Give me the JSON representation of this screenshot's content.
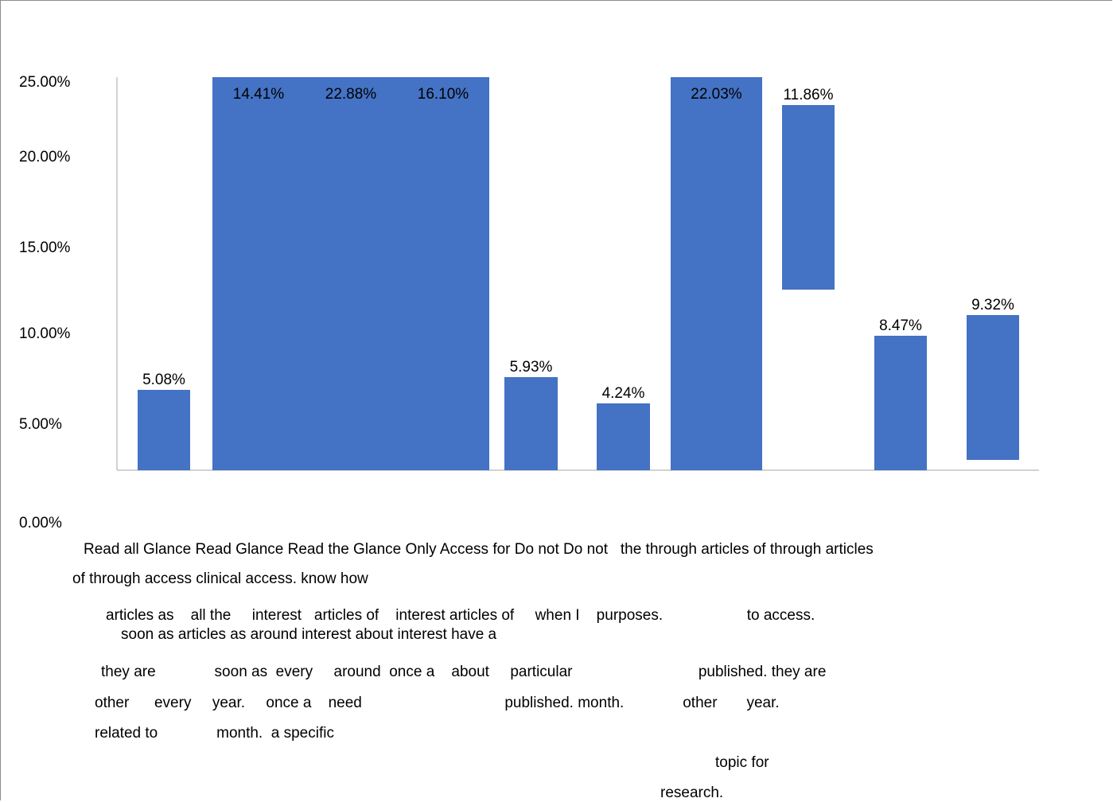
{
  "chart_data": {
    "type": "bar",
    "title": "",
    "xlabel": "",
    "ylabel": "",
    "ylim": [
      0,
      25
    ],
    "yticks": [
      "0.00%",
      "5.00%",
      "10.00%",
      "15.00%",
      "20.00%",
      "25.00%"
    ],
    "grid": false,
    "legend": "none",
    "values": [
      5.08,
      14.41,
      22.88,
      16.1,
      5.93,
      4.24,
      22.03,
      11.86,
      8.47,
      9.32
    ],
    "labels": [
      "5.08%",
      "14.41%",
      "22.88%",
      "16.10%",
      "5.93%",
      "4.24%",
      "22.03%",
      "11.86%",
      "8.47%",
      "9.32%"
    ],
    "bar_color": "#4472C4",
    "category_text_lines": [
      "Read all Glance Read Glance Read the Glance Only Access for Do not Do not   the through articles of through articles",
      "of through access clinical access. know how",
      "articles as    all the     interest   articles of    interest articles of     when I    purposes.                    to access.",
      "soon as articles as around interest about interest have a",
      "they are              soon as  every     around  once a    about     particular                              published. they are",
      "other      every     year.     once a    need                                  published. month.              other       year.",
      "related to              month.  a specific",
      "topic for",
      "research."
    ]
  }
}
